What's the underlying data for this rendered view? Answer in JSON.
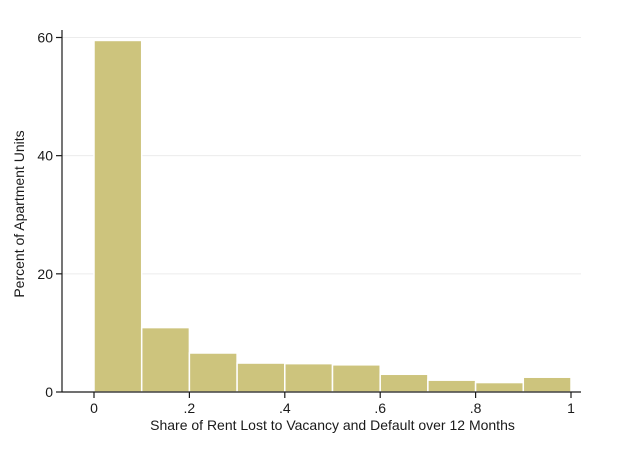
{
  "chart_data": {
    "type": "bar",
    "histogram": true,
    "title": "",
    "xlabel": "Share of Rent Lost to Vacancy and Default over 12 Months",
    "ylabel": "Percent of Apartment Units",
    "xlim": [
      0,
      1
    ],
    "ylim": [
      0,
      62
    ],
    "bin_edges": [
      0,
      0.1,
      0.2,
      0.3,
      0.4,
      0.5,
      0.6,
      0.7,
      0.8,
      0.9,
      1.0
    ],
    "values": [
      59.5,
      10.9,
      6.6,
      4.9,
      4.8,
      4.6,
      3.0,
      2.0,
      1.6,
      2.5
    ],
    "x_ticks": [
      {
        "value": 0,
        "label": "0"
      },
      {
        "value": 0.2,
        "label": ".2"
      },
      {
        "value": 0.4,
        "label": ".4"
      },
      {
        "value": 0.6,
        "label": ".6"
      },
      {
        "value": 0.8,
        "label": ".8"
      },
      {
        "value": 1.0,
        "label": "1"
      }
    ],
    "y_ticks": [
      {
        "value": 0,
        "label": "0"
      },
      {
        "value": 20,
        "label": "20"
      },
      {
        "value": 40,
        "label": "40"
      },
      {
        "value": 60,
        "label": "60"
      }
    ],
    "grid": "horizontal",
    "legend": "none",
    "colors": {
      "bar_fill": "#cdc47d",
      "bar_edge": "#ffffff",
      "grid": "#ececec",
      "axis": "#1a1a1a"
    }
  }
}
